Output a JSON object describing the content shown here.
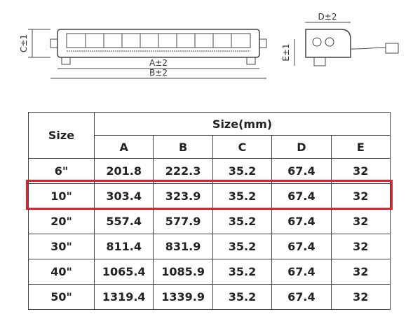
{
  "diagram": {
    "labels": {
      "c": "C±1",
      "a": "A±2",
      "b": "B±2",
      "d": "D±2",
      "e": "E±1"
    }
  },
  "table": {
    "size_label": "Size",
    "size_mm_label": "Size(mm)",
    "columns": [
      "A",
      "B",
      "C",
      "D",
      "E"
    ],
    "rows": [
      [
        "6\"",
        "201.8",
        "222.3",
        "35.2",
        "67.4",
        "32"
      ],
      [
        "10\"",
        "303.4",
        "323.9",
        "35.2",
        "67.4",
        "32"
      ],
      [
        "20\"",
        "557.4",
        "577.9",
        "35.2",
        "67.4",
        "32"
      ],
      [
        "30\"",
        "811.4",
        "831.9",
        "35.2",
        "67.4",
        "32"
      ],
      [
        "40\"",
        "1065.4",
        "1085.9",
        "35.2",
        "67.4",
        "32"
      ],
      [
        "50\"",
        "1319.4",
        "1339.9",
        "35.2",
        "67.4",
        "32"
      ]
    ]
  }
}
